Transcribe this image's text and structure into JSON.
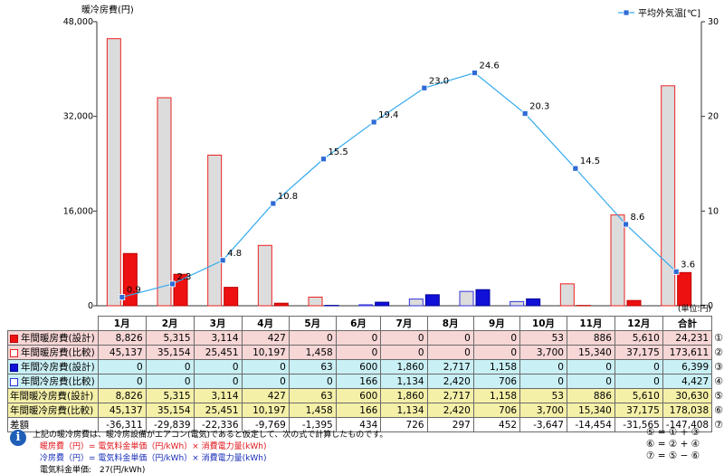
{
  "chart_data": {
    "type": "bar+line",
    "categories": [
      "1月",
      "2月",
      "3月",
      "4月",
      "5月",
      "6月",
      "7月",
      "8月",
      "9月",
      "10月",
      "11月",
      "12月"
    ],
    "y_left": {
      "label": "暖冷房費(円)",
      "range": [
        0,
        48000
      ],
      "ticks": [
        "0",
        "16,000",
        "32,000",
        "48,000"
      ],
      "tick_values": [
        0,
        16000,
        32000,
        48000
      ]
    },
    "y_right": {
      "label": "平均外気温[℃]",
      "range": [
        0,
        30
      ],
      "ticks": [
        "0",
        "10",
        "20",
        "30"
      ],
      "tick_values": [
        0,
        10,
        20,
        30
      ]
    },
    "grid": false,
    "legend_placement": "top-right",
    "series": [
      {
        "name": "年間暖房費(設計)",
        "kind": "bar",
        "group": 0,
        "fill": "#ee1111",
        "stroke": "#bb0000",
        "values": [
          8826,
          5315,
          3114,
          427,
          0,
          0,
          0,
          0,
          0,
          53,
          886,
          5610
        ]
      },
      {
        "name": "年間暖房費(比較)",
        "kind": "bar",
        "group": 1,
        "fill": "#dcdcdc",
        "stroke": "#ee2222",
        "values": [
          45137,
          35154,
          25451,
          10197,
          1458,
          0,
          0,
          0,
          0,
          3700,
          15340,
          37175
        ]
      },
      {
        "name": "年間冷房費(設計)",
        "kind": "bar",
        "group": 0,
        "fill": "#1010d8",
        "stroke": "#000099",
        "values": [
          0,
          0,
          0,
          0,
          63,
          600,
          1860,
          2717,
          1158,
          0,
          0,
          0
        ]
      },
      {
        "name": "年間冷房費(比較)",
        "kind": "bar",
        "group": 1,
        "fill": "#dcdcdc",
        "stroke": "#3333dd",
        "values": [
          0,
          0,
          0,
          0,
          0,
          166,
          1134,
          2420,
          706,
          0,
          0,
          0
        ]
      },
      {
        "name": "平均外気温[℃]",
        "kind": "line",
        "axis": "right",
        "color": "#33aaee",
        "values": [
          0.9,
          2.3,
          4.8,
          10.8,
          15.5,
          19.4,
          23.0,
          24.6,
          20.3,
          14.5,
          8.6,
          3.6
        ],
        "labels": [
          "0.9",
          "2.3",
          "4.8",
          "10.8",
          "15.5",
          "19.4",
          "23.0",
          "24.6",
          "20.3",
          "14.5",
          "8.6",
          "3.6"
        ]
      }
    ]
  },
  "unit_note": "(単位:円)",
  "table": {
    "months": [
      "1月",
      "2月",
      "3月",
      "4月",
      "5月",
      "6月",
      "7月",
      "8月",
      "9月",
      "10月",
      "11月",
      "12月"
    ],
    "total_header": "合計",
    "rows": [
      {
        "cls": "r-heat-design",
        "swatch_fill": "#ee1111",
        "swatch_border": "#bb0000",
        "label": "年間暖房費(設計)",
        "values": [
          "8,826",
          "5,315",
          "3,114",
          "427",
          "0",
          "0",
          "0",
          "0",
          "0",
          "53",
          "886",
          "5,610"
        ],
        "total": "24,231",
        "mark": "①"
      },
      {
        "cls": "r-heat-comp",
        "swatch_fill": "#ffffff",
        "swatch_border": "#ee2222",
        "label": "年間暖房費(比較)",
        "values": [
          "45,137",
          "35,154",
          "25,451",
          "10,197",
          "1,458",
          "0",
          "0",
          "0",
          "0",
          "3,700",
          "15,340",
          "37,175"
        ],
        "total": "173,611",
        "mark": "②"
      },
      {
        "cls": "r-cool-design",
        "swatch_fill": "#1010d8",
        "swatch_border": "#000099",
        "label": "年間冷房費(設計)",
        "values": [
          "0",
          "0",
          "0",
          "0",
          "63",
          "600",
          "1,860",
          "2,717",
          "1,158",
          "0",
          "0",
          "0"
        ],
        "total": "6,399",
        "mark": "③"
      },
      {
        "cls": "r-cool-comp",
        "swatch_fill": "#ffffff",
        "swatch_border": "#3333dd",
        "label": "年間冷房費(比較)",
        "values": [
          "0",
          "0",
          "0",
          "0",
          "0",
          "166",
          "1,134",
          "2,420",
          "706",
          "0",
          "0",
          "0"
        ],
        "total": "4,427",
        "mark": "④"
      },
      {
        "cls": "r-sum-design",
        "swatch_fill": "",
        "swatch_border": "",
        "label": "年間暖冷房費(設計)",
        "values": [
          "8,826",
          "5,315",
          "3,114",
          "427",
          "63",
          "600",
          "1,860",
          "2,717",
          "1,158",
          "53",
          "886",
          "5,610"
        ],
        "total": "30,630",
        "mark": "⑤"
      },
      {
        "cls": "r-sum-comp",
        "swatch_fill": "",
        "swatch_border": "",
        "label": "年間暖冷房費(比較)",
        "values": [
          "45,137",
          "35,154",
          "25,451",
          "10,197",
          "1,458",
          "166",
          "1,134",
          "2,420",
          "706",
          "3,700",
          "15,340",
          "37,175"
        ],
        "total": "178,038",
        "mark": "⑥"
      },
      {
        "cls": "r-diff",
        "swatch_fill": "",
        "swatch_border": "",
        "label": "差額",
        "values": [
          "-36,311",
          "-29,839",
          "-22,336",
          "-9,769",
          "-1,395",
          "434",
          "726",
          "297",
          "452",
          "-3,647",
          "-14,454",
          "-31,565"
        ],
        "total": "-147,408",
        "mark": "⑦"
      }
    ]
  },
  "note": {
    "line1": "上記の暖冷房費は、暖冷房設備がエアコン(電気)であると仮定して、次の式で計算したものです。",
    "line2": "暖房費（円）= 電気料金単価（円/kWh）× 消費電力量(kWh)",
    "line3": "冷房費（円）= 電気料金単価（円/kWh）× 消費電力量(kWh)",
    "line4": "電気料金単価:　27(円/kWh)",
    "formula1": "⑤ = ① + ③",
    "formula2": "⑥ = ② + ④",
    "formula3": "⑦ = ⑤ − ⑥"
  },
  "colors": {
    "line": "#33aaee",
    "heat": "#ee1111",
    "cool": "#1010d8",
    "compare_fill": "#dcdcdc"
  }
}
